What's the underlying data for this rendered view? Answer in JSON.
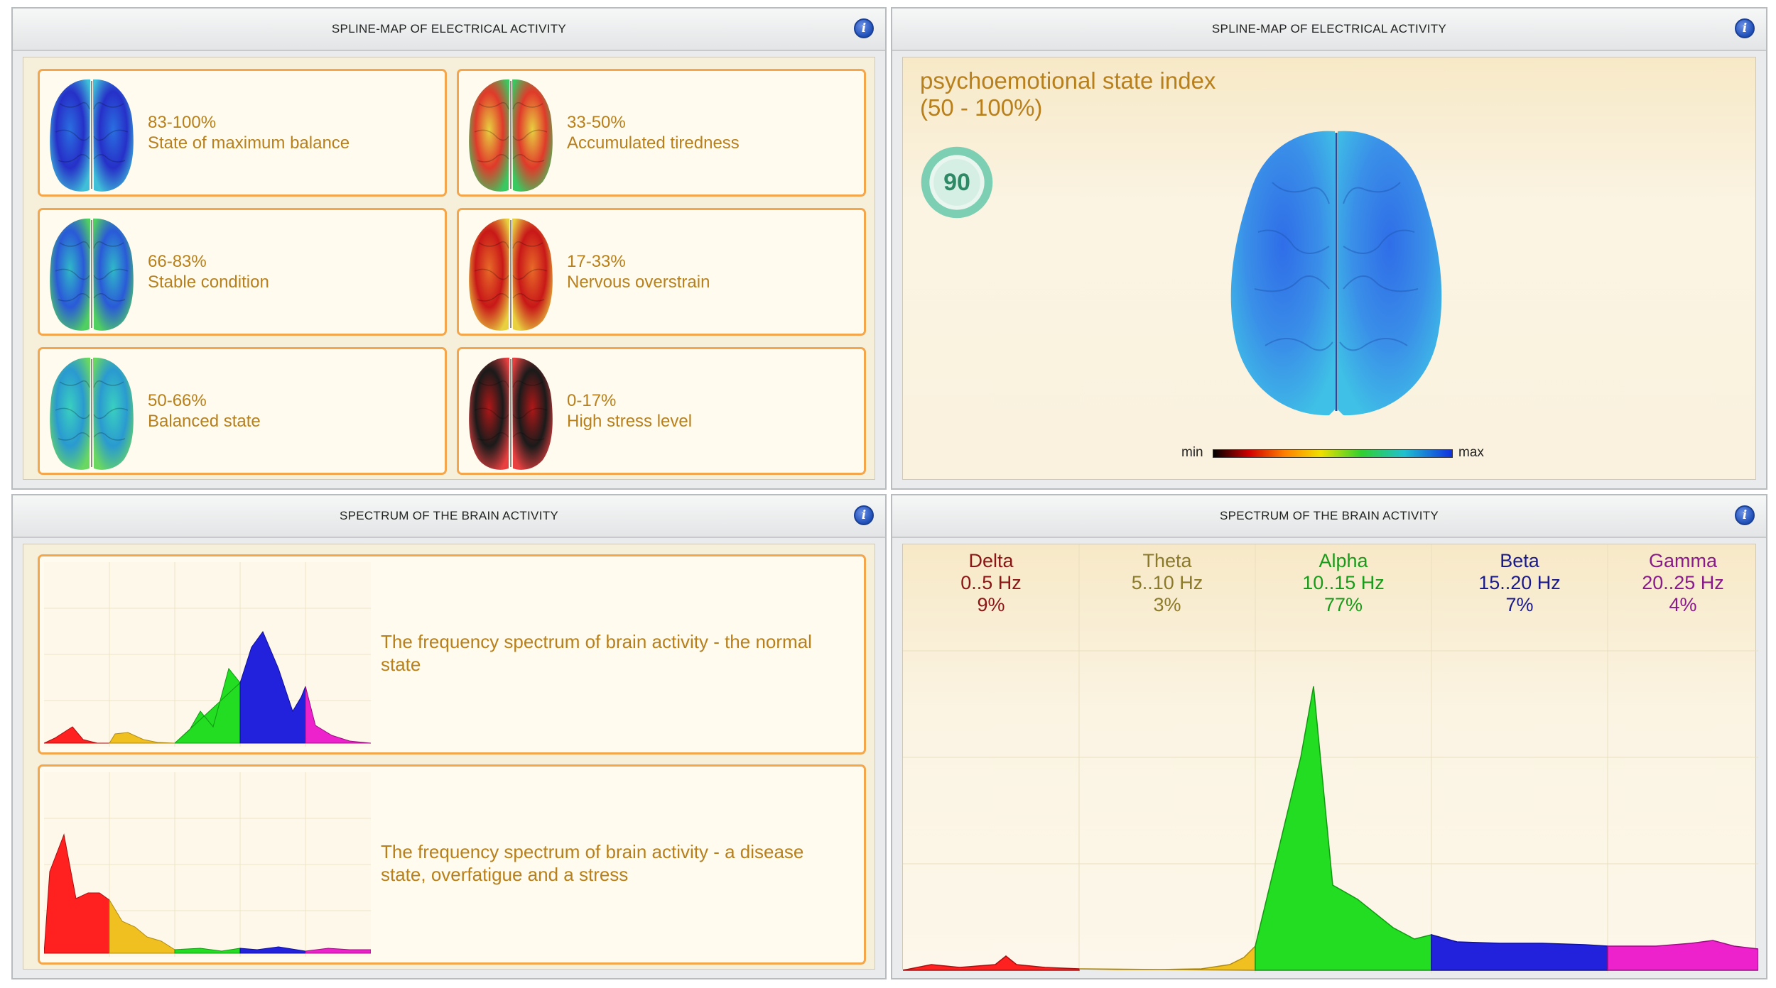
{
  "panels": {
    "top_left": {
      "title": "SPLINE-MAP OF ELECTRICAL ACTIVITY",
      "info": "i"
    },
    "top_right": {
      "title": "SPLINE-MAP OF ELECTRICAL ACTIVITY",
      "info": "i"
    },
    "bottom_left": {
      "title": "SPECTRUM OF THE BRAIN ACTIVITY",
      "info": "i"
    },
    "bottom_right": {
      "title": "SPECTRUM OF THE BRAIN ACTIVITY",
      "info": "i"
    }
  },
  "states": [
    {
      "range": "83-100%",
      "label": "State of maximum balance",
      "scheme": "blue"
    },
    {
      "range": "33-50%",
      "label": "Accumulated tiredness",
      "scheme": "green-red"
    },
    {
      "range": "66-83%",
      "label": "Stable condition",
      "scheme": "blue-green"
    },
    {
      "range": "17-33%",
      "label": "Nervous overstrain",
      "scheme": "red"
    },
    {
      "range": "50-66%",
      "label": "Balanced state",
      "scheme": "cyan-green"
    },
    {
      "range": "0-17%",
      "label": "High stress level",
      "scheme": "black-red"
    }
  ],
  "index": {
    "title": "psychoemotional state index",
    "range": "(50 - 100%)",
    "value": "90",
    "colorbar_min": "min",
    "colorbar_max": "max"
  },
  "spectra_examples": [
    {
      "text": "The frequency spectrum of brain activity - the normal state"
    },
    {
      "text": "The frequency spectrum of brain activity - a disease state, overfatigue and a stress"
    }
  ],
  "bands": [
    {
      "name": "Delta",
      "range": "0..5 Hz",
      "percent": "9%",
      "color": "#8b1515"
    },
    {
      "name": "Theta",
      "range": "5..10 Hz",
      "percent": "3%",
      "color": "#8a7a2a"
    },
    {
      "name": "Alpha",
      "range": "10..15 Hz",
      "percent": "77%",
      "color": "#1a9a1a"
    },
    {
      "name": "Beta",
      "range": "15..20 Hz",
      "percent": "7%",
      "color": "#1a1a8a"
    },
    {
      "name": "Gamma",
      "range": "20..25 Hz",
      "percent": "4%",
      "color": "#8a1a8a"
    }
  ],
  "colors": {
    "card_border": "#f3a64c",
    "text_orange": "#b8801c",
    "index_ring": "#5fc2a0",
    "delta": "#ff2020",
    "theta": "#f0c020",
    "alpha": "#22dd22",
    "beta": "#2222dd",
    "gamma": "#ee22cc"
  }
}
